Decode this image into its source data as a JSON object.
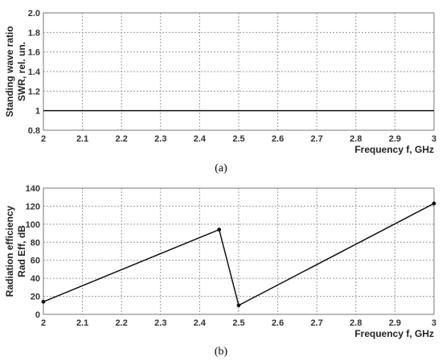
{
  "chart_data": [
    {
      "type": "line",
      "caption": "(a)",
      "ylabel_lines": [
        "Standing wave ratio",
        "SWR, rel. un."
      ],
      "xlabel": "Frequency f, GHz",
      "xlim": [
        2,
        3
      ],
      "ylim": [
        0.8,
        2.0
      ],
      "x_ticks": [
        2,
        2.1,
        2.2,
        2.3,
        2.4,
        2.5,
        2.6,
        2.7,
        2.8,
        2.9,
        3
      ],
      "x_tick_labels": [
        "2",
        "2.1",
        "2.2",
        "2.3",
        "2.4",
        "2.5",
        "2.6",
        "2.7",
        "2.8",
        "2.9",
        "3"
      ],
      "y_ticks": [
        0.8,
        1.0,
        1.2,
        1.4,
        1.6,
        1.8,
        2.0
      ],
      "y_tick_labels": [
        "0.8",
        "1",
        "1.2",
        "1.4",
        "1.6",
        "1.8",
        "2.0"
      ],
      "grid": true,
      "series": [
        {
          "x": [
            2,
            3
          ],
          "y": [
            1.0,
            1.0
          ],
          "markers": false
        }
      ]
    },
    {
      "type": "line",
      "caption": "(b)",
      "ylabel_lines": [
        "Radiation efficiency",
        "Rad Eff, dB"
      ],
      "xlabel": "Frequency f, GHz",
      "xlim": [
        2,
        3
      ],
      "ylim": [
        0,
        140
      ],
      "x_ticks": [
        2,
        2.1,
        2.2,
        2.3,
        2.4,
        2.5,
        2.6,
        2.7,
        2.8,
        2.9,
        3
      ],
      "x_tick_labels": [
        "2",
        "2.1",
        "2.2",
        "2.3",
        "2.4",
        "2.5",
        "2.6",
        "2.7",
        "2.8",
        "2.9",
        "3"
      ],
      "y_ticks": [
        0,
        20,
        40,
        60,
        80,
        100,
        120,
        140
      ],
      "y_tick_labels": [
        "0",
        "20",
        "40",
        "60",
        "80",
        "100",
        "120",
        "140"
      ],
      "grid": true,
      "series": [
        {
          "x": [
            2.0,
            2.45,
            2.5,
            3.0
          ],
          "y": [
            14,
            94,
            10,
            123
          ],
          "markers": true
        }
      ]
    }
  ]
}
